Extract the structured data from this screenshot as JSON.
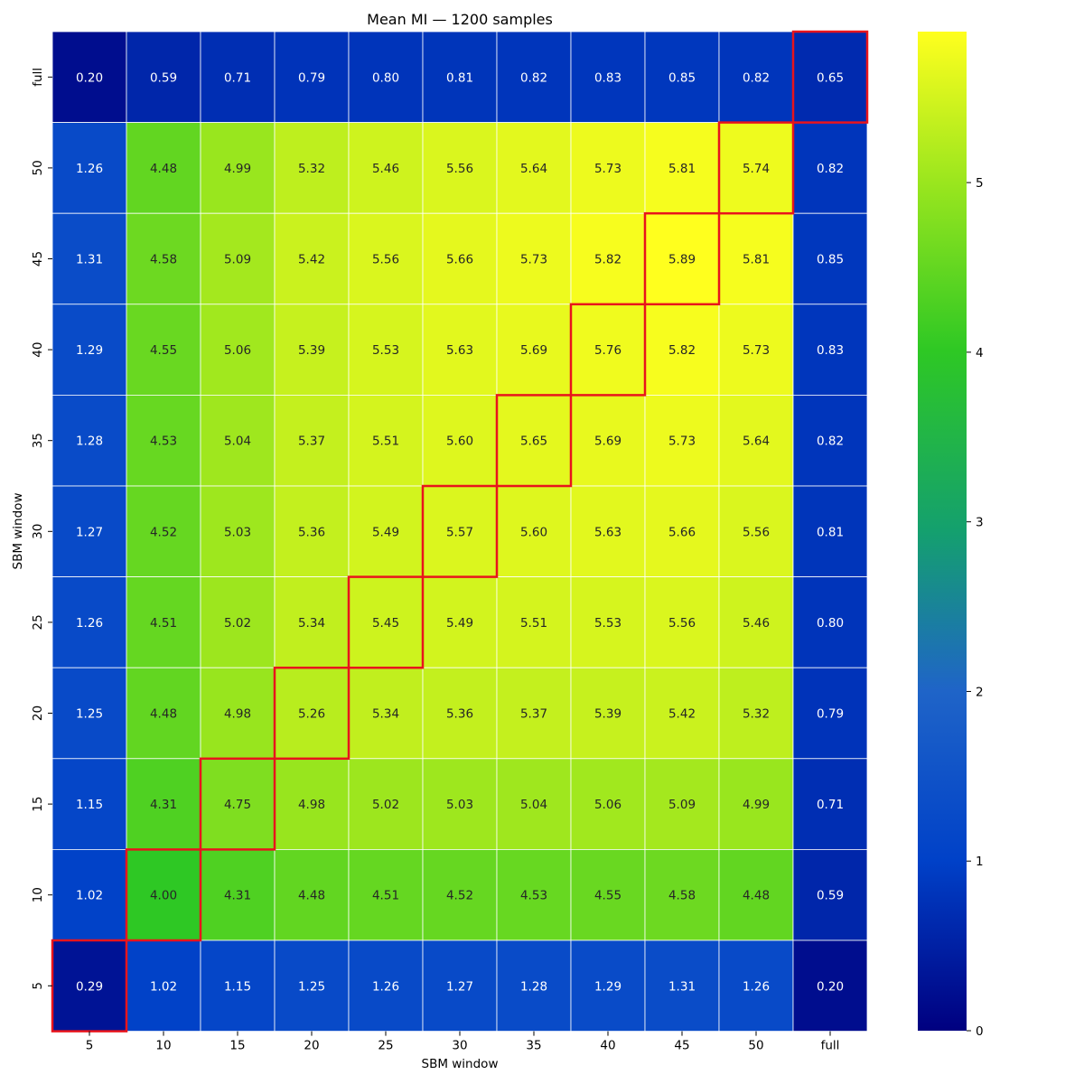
{
  "chart_data": {
    "type": "heatmap",
    "title": "Mean MI — 1200 samples",
    "xlabel": "SBM window",
    "ylabel": "SBM window",
    "x_categories": [
      "5",
      "10",
      "15",
      "20",
      "25",
      "30",
      "35",
      "40",
      "45",
      "50",
      "full"
    ],
    "y_categories": [
      "full",
      "50",
      "45",
      "40",
      "35",
      "30",
      "25",
      "20",
      "15",
      "10",
      "5"
    ],
    "values": [
      [
        0.2,
        0.59,
        0.71,
        0.79,
        0.8,
        0.81,
        0.82,
        0.83,
        0.85,
        0.82,
        0.65
      ],
      [
        1.26,
        4.48,
        4.99,
        5.32,
        5.46,
        5.56,
        5.64,
        5.73,
        5.81,
        5.74,
        0.82
      ],
      [
        1.31,
        4.58,
        5.09,
        5.42,
        5.56,
        5.66,
        5.73,
        5.82,
        5.89,
        5.81,
        0.85
      ],
      [
        1.29,
        4.55,
        5.06,
        5.39,
        5.53,
        5.63,
        5.69,
        5.76,
        5.82,
        5.73,
        0.83
      ],
      [
        1.28,
        4.53,
        5.04,
        5.37,
        5.51,
        5.6,
        5.65,
        5.69,
        5.73,
        5.64,
        0.82
      ],
      [
        1.27,
        4.52,
        5.03,
        5.36,
        5.49,
        5.57,
        5.6,
        5.63,
        5.66,
        5.56,
        0.81
      ],
      [
        1.26,
        4.51,
        5.02,
        5.34,
        5.45,
        5.49,
        5.51,
        5.53,
        5.56,
        5.46,
        0.8
      ],
      [
        1.25,
        4.48,
        4.98,
        5.26,
        5.34,
        5.36,
        5.37,
        5.39,
        5.42,
        5.32,
        0.79
      ],
      [
        1.15,
        4.31,
        4.75,
        4.98,
        5.02,
        5.03,
        5.04,
        5.06,
        5.09,
        4.99,
        0.71
      ],
      [
        1.02,
        4.0,
        4.31,
        4.48,
        4.51,
        4.52,
        4.53,
        4.55,
        4.58,
        4.48,
        0.59
      ],
      [
        0.29,
        1.02,
        1.15,
        1.25,
        1.26,
        1.27,
        1.28,
        1.29,
        1.31,
        1.26,
        0.2
      ]
    ],
    "highlighted_diagonal": true,
    "highlight_color": "#e8141c",
    "colormap": "winter-like blue→green→yellow",
    "colormap_stops": [
      "#000080",
      "#0041c8",
      "#2aaa2a",
      "#7fe61a",
      "#ffff1e"
    ],
    "colorbar": {
      "range": [
        0,
        5.89
      ],
      "ticks": [
        "0",
        "1",
        "2",
        "3",
        "4",
        "5"
      ]
    },
    "grid_lines": true
  }
}
